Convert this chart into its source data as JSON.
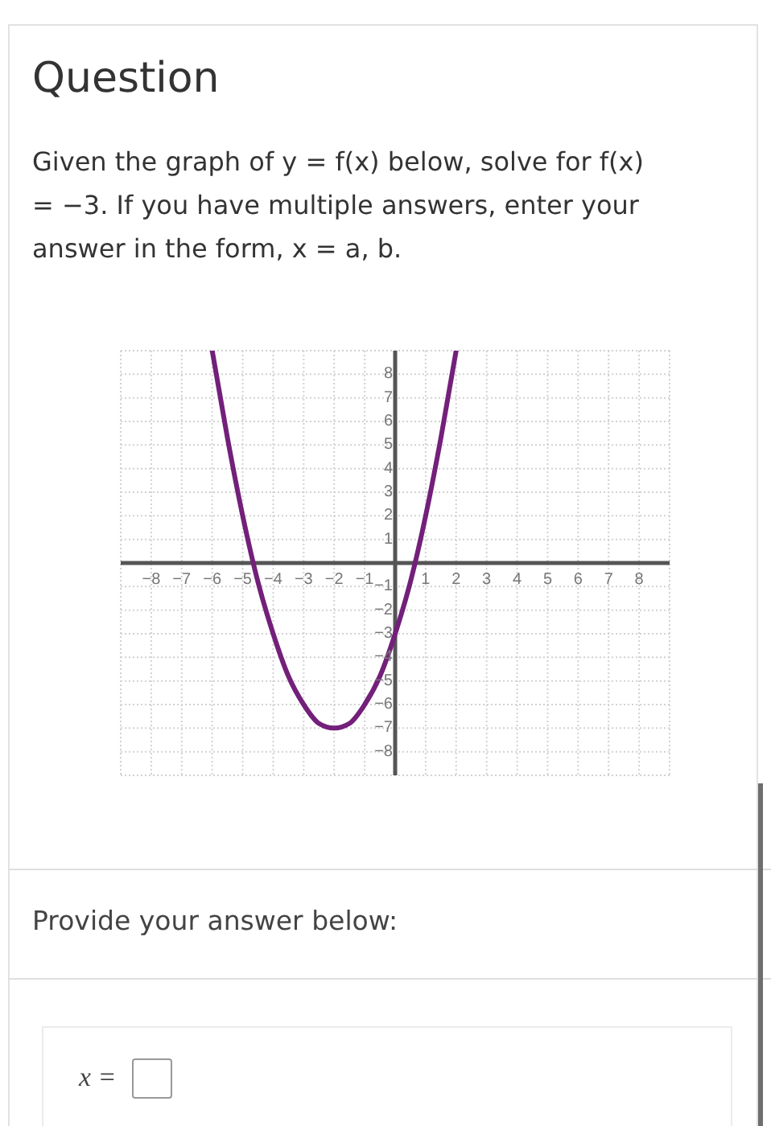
{
  "chart_data": {
    "type": "line",
    "title": "Question",
    "subtitle": "Given the graph of y = f(x) below, solve for f(x) = −3. If you have multiple answers, enter your answer in the form, x = a, b.",
    "x": [
      -6,
      -5.5,
      -5,
      -4.5,
      -4,
      -3.5,
      -3,
      -2.5,
      -2,
      -1.5,
      -1,
      -0.5,
      0,
      0.5,
      1,
      1.5,
      2
    ],
    "series": [
      {
        "color": "#73207a",
        "values": [
          9,
          5.3,
          2,
          -0.8,
          -3,
          -4.8,
          -6,
          -6.8,
          -7,
          -6.8,
          -6,
          -4.8,
          -3,
          -0.8,
          2,
          5.3,
          9
        ]
      }
    ],
    "xlim": [
      -9,
      9
    ],
    "ylim": [
      -9,
      9
    ],
    "xticks": [
      {
        "value": -9,
        "label": null
      },
      -8,
      -7,
      -6,
      -5,
      -4,
      -3,
      -2,
      -1,
      {
        "value": 0,
        "label": null
      },
      1,
      2,
      3,
      4,
      5,
      6,
      7,
      8,
      {
        "value": 9,
        "label": null
      }
    ],
    "yticks": [
      {
        "value": -9,
        "label": null
      },
      -8,
      -7,
      -6,
      -5,
      -4,
      -3,
      -2,
      -1,
      {
        "value": 0,
        "label": null
      },
      1,
      2,
      3,
      4,
      5,
      6,
      7,
      8,
      {
        "value": 9,
        "label": null
      }
    ],
    "grid": true,
    "marker": "none",
    "line_style": "solid",
    "annotations": [
      "Provide your answer below:",
      "x ="
    ]
  }
}
